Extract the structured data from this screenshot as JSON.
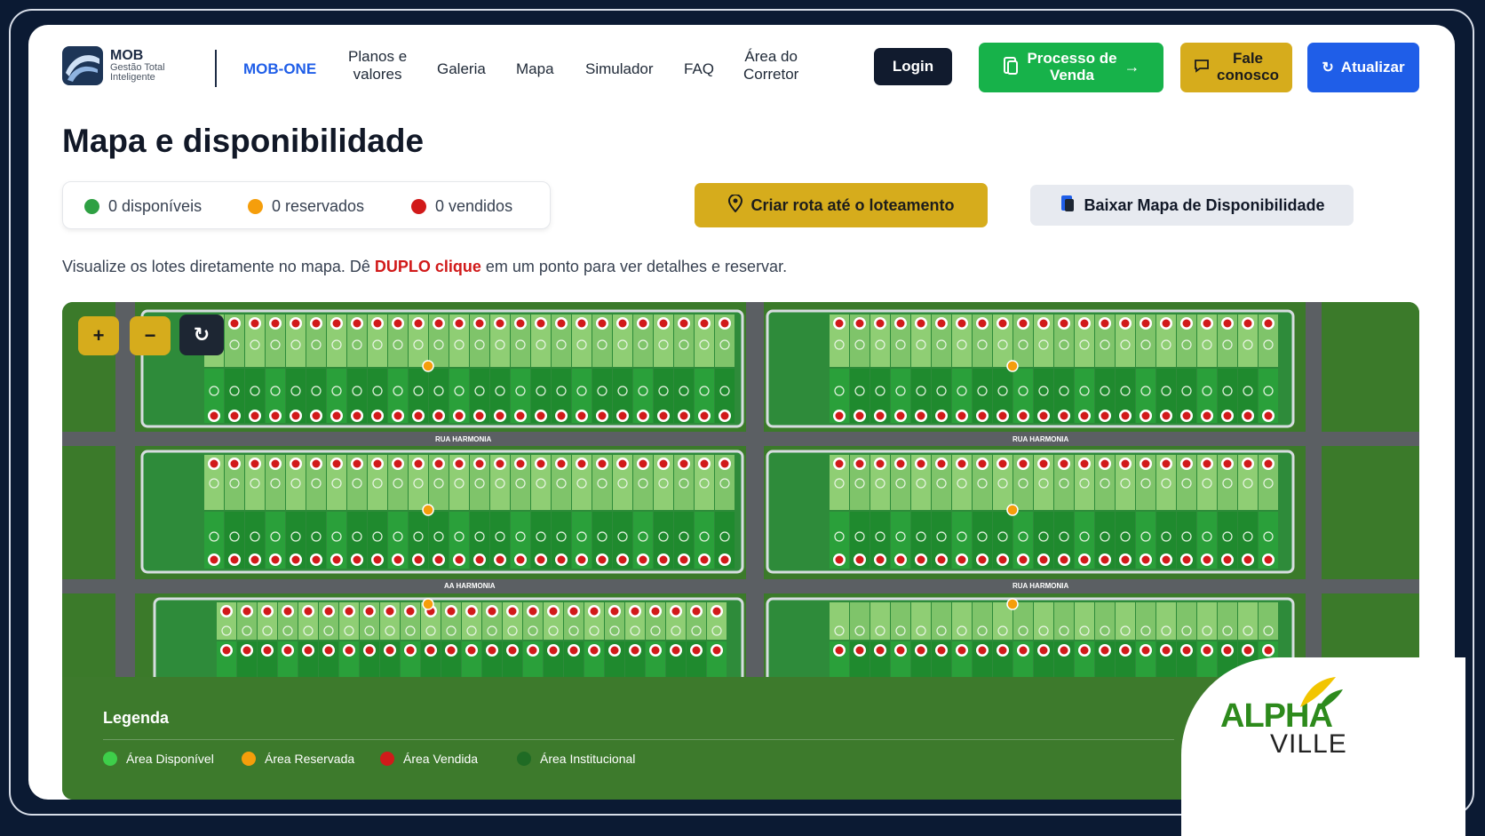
{
  "header": {
    "logo_title": "MOB",
    "logo_subtitle_1": "Gestão Total",
    "logo_subtitle_2": "Inteligente",
    "nav": {
      "mob_one": "MOB-ONE",
      "planos_1": "Planos e",
      "planos_2": "valores",
      "galeria": "Galeria",
      "mapa": "Mapa",
      "simulador": "Simulador",
      "faq": "FAQ",
      "corretor_1": "Área do",
      "corretor_2": "Corretor"
    },
    "login": "Login",
    "processo_1": "Processo de",
    "processo_2": "Venda",
    "fale_1": "Fale",
    "fale_2": "conosco",
    "atualizar": "Atualizar"
  },
  "main": {
    "title": "Mapa e disponibilidade",
    "status": {
      "disponiveis": "0 disponíveis",
      "reservados": "0 reservados",
      "vendidos": "0 vendidos"
    },
    "criar_rota": "Criar rota até o loteamento",
    "baixar_mapa": "Baixar Mapa de Disponibilidade",
    "hint_before": "Visualize os lotes diretamente no mapa. Dê ",
    "hint_strong": "DUPLO clique",
    "hint_after": " em um ponto para ver detalhes e reservar."
  },
  "map": {
    "zoom_in": "+",
    "zoom_out": "−",
    "streets": [
      "RUA HARMONIA",
      "RUA HARMONIA",
      "AA HARMONIA",
      "RUA HARMONIA"
    ],
    "legend_title": "Legenda",
    "legend": [
      {
        "label": "Área Disponível",
        "color": "#3ecf4a"
      },
      {
        "label": "Área Reservada",
        "color": "#f59e0b"
      },
      {
        "label": "Área Vendida",
        "color": "#d11a1a"
      },
      {
        "label": "Área Institucional",
        "color": "#1f6b24"
      }
    ]
  },
  "brand": {
    "top": "ALPHA",
    "bottom": "VILLE"
  },
  "colors": {
    "primary_blue": "#1f5ee8",
    "green": "#17b24a",
    "gold": "#d6ac1c",
    "sold_red": "#d11a1a",
    "available_green": "#2ea043",
    "reserved_orange": "#f59e0b"
  }
}
